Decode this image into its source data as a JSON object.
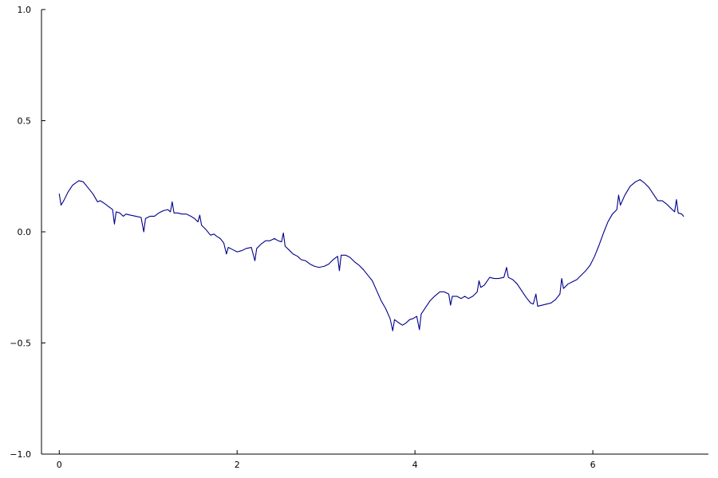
{
  "chart_data": {
    "type": "line",
    "title": "",
    "xlabel": "",
    "ylabel": "",
    "xlim": [
      -0.2,
      7.3
    ],
    "ylim": [
      -1.0,
      1.0
    ],
    "xticks": [
      {
        "value": 0,
        "label": "0"
      },
      {
        "value": 2,
        "label": "2"
      },
      {
        "value": 4,
        "label": "4"
      },
      {
        "value": 6,
        "label": "6"
      }
    ],
    "yticks": [
      {
        "value": -1.0,
        "label": "−1.0"
      },
      {
        "value": -0.5,
        "label": "−0.5"
      },
      {
        "value": 0.0,
        "label": "0.0"
      },
      {
        "value": 0.5,
        "label": "0.5"
      },
      {
        "value": 1.0,
        "label": "1.0"
      }
    ],
    "grid": false,
    "legend": "none",
    "series": [
      {
        "color": "#00008b",
        "points": [
          [
            0.0,
            0.17
          ],
          [
            0.02,
            0.12
          ],
          [
            0.05,
            0.14
          ],
          [
            0.1,
            0.18
          ],
          [
            0.15,
            0.21
          ],
          [
            0.22,
            0.23
          ],
          [
            0.27,
            0.225
          ],
          [
            0.32,
            0.2
          ],
          [
            0.38,
            0.17
          ],
          [
            0.43,
            0.135
          ],
          [
            0.46,
            0.14
          ],
          [
            0.5,
            0.13
          ],
          [
            0.55,
            0.115
          ],
          [
            0.6,
            0.1
          ],
          [
            0.62,
            0.035
          ],
          [
            0.64,
            0.09
          ],
          [
            0.68,
            0.085
          ],
          [
            0.72,
            0.07
          ],
          [
            0.75,
            0.08
          ],
          [
            0.8,
            0.075
          ],
          [
            0.86,
            0.07
          ],
          [
            0.92,
            0.065
          ],
          [
            0.95,
            0.0
          ],
          [
            0.97,
            0.06
          ],
          [
            1.02,
            0.07
          ],
          [
            1.07,
            0.07
          ],
          [
            1.12,
            0.085
          ],
          [
            1.17,
            0.095
          ],
          [
            1.22,
            0.1
          ],
          [
            1.25,
            0.09
          ],
          [
            1.27,
            0.135
          ],
          [
            1.29,
            0.085
          ],
          [
            1.33,
            0.085
          ],
          [
            1.38,
            0.08
          ],
          [
            1.43,
            0.08
          ],
          [
            1.48,
            0.07
          ],
          [
            1.52,
            0.06
          ],
          [
            1.56,
            0.045
          ],
          [
            1.58,
            0.075
          ],
          [
            1.6,
            0.03
          ],
          [
            1.65,
            0.01
          ],
          [
            1.7,
            -0.015
          ],
          [
            1.74,
            -0.01
          ],
          [
            1.77,
            -0.02
          ],
          [
            1.81,
            -0.03
          ],
          [
            1.85,
            -0.05
          ],
          [
            1.88,
            -0.1
          ],
          [
            1.9,
            -0.07
          ],
          [
            1.95,
            -0.08
          ],
          [
            2.0,
            -0.09
          ],
          [
            2.05,
            -0.085
          ],
          [
            2.1,
            -0.075
          ],
          [
            2.16,
            -0.07
          ],
          [
            2.2,
            -0.13
          ],
          [
            2.22,
            -0.075
          ],
          [
            2.27,
            -0.055
          ],
          [
            2.32,
            -0.04
          ],
          [
            2.37,
            -0.04
          ],
          [
            2.42,
            -0.03
          ],
          [
            2.46,
            -0.04
          ],
          [
            2.5,
            -0.045
          ],
          [
            2.52,
            -0.005
          ],
          [
            2.54,
            -0.065
          ],
          [
            2.58,
            -0.08
          ],
          [
            2.63,
            -0.1
          ],
          [
            2.68,
            -0.11
          ],
          [
            2.72,
            -0.125
          ],
          [
            2.77,
            -0.13
          ],
          [
            2.82,
            -0.145
          ],
          [
            2.87,
            -0.155
          ],
          [
            2.92,
            -0.16
          ],
          [
            2.98,
            -0.155
          ],
          [
            3.03,
            -0.145
          ],
          [
            3.08,
            -0.125
          ],
          [
            3.13,
            -0.11
          ],
          [
            3.15,
            -0.175
          ],
          [
            3.17,
            -0.105
          ],
          [
            3.22,
            -0.105
          ],
          [
            3.27,
            -0.115
          ],
          [
            3.32,
            -0.135
          ],
          [
            3.37,
            -0.15
          ],
          [
            3.42,
            -0.17
          ],
          [
            3.47,
            -0.195
          ],
          [
            3.52,
            -0.22
          ],
          [
            3.57,
            -0.265
          ],
          [
            3.62,
            -0.31
          ],
          [
            3.67,
            -0.345
          ],
          [
            3.72,
            -0.39
          ],
          [
            3.75,
            -0.445
          ],
          [
            3.77,
            -0.395
          ],
          [
            3.82,
            -0.41
          ],
          [
            3.86,
            -0.42
          ],
          [
            3.9,
            -0.41
          ],
          [
            3.94,
            -0.395
          ],
          [
            3.98,
            -0.39
          ],
          [
            4.02,
            -0.38
          ],
          [
            4.05,
            -0.44
          ],
          [
            4.07,
            -0.37
          ],
          [
            4.12,
            -0.34
          ],
          [
            4.17,
            -0.31
          ],
          [
            4.22,
            -0.29
          ],
          [
            4.28,
            -0.27
          ],
          [
            4.33,
            -0.27
          ],
          [
            4.38,
            -0.28
          ],
          [
            4.4,
            -0.33
          ],
          [
            4.42,
            -0.29
          ],
          [
            4.47,
            -0.29
          ],
          [
            4.52,
            -0.3
          ],
          [
            4.56,
            -0.29
          ],
          [
            4.6,
            -0.3
          ],
          [
            4.65,
            -0.29
          ],
          [
            4.7,
            -0.27
          ],
          [
            4.72,
            -0.22
          ],
          [
            4.74,
            -0.25
          ],
          [
            4.78,
            -0.24
          ],
          [
            4.84,
            -0.205
          ],
          [
            4.89,
            -0.21
          ],
          [
            4.94,
            -0.21
          ],
          [
            5.0,
            -0.205
          ],
          [
            5.03,
            -0.16
          ],
          [
            5.05,
            -0.205
          ],
          [
            5.1,
            -0.215
          ],
          [
            5.15,
            -0.235
          ],
          [
            5.2,
            -0.265
          ],
          [
            5.25,
            -0.295
          ],
          [
            5.3,
            -0.32
          ],
          [
            5.33,
            -0.325
          ],
          [
            5.36,
            -0.28
          ],
          [
            5.38,
            -0.335
          ],
          [
            5.43,
            -0.33
          ],
          [
            5.48,
            -0.325
          ],
          [
            5.53,
            -0.32
          ],
          [
            5.58,
            -0.305
          ],
          [
            5.63,
            -0.28
          ],
          [
            5.65,
            -0.21
          ],
          [
            5.67,
            -0.255
          ],
          [
            5.72,
            -0.235
          ],
          [
            5.77,
            -0.225
          ],
          [
            5.82,
            -0.215
          ],
          [
            5.87,
            -0.195
          ],
          [
            5.92,
            -0.175
          ],
          [
            5.97,
            -0.15
          ],
          [
            6.02,
            -0.11
          ],
          [
            6.07,
            -0.06
          ],
          [
            6.12,
            -0.005
          ],
          [
            6.17,
            0.045
          ],
          [
            6.22,
            0.08
          ],
          [
            6.27,
            0.1
          ],
          [
            6.29,
            0.165
          ],
          [
            6.31,
            0.12
          ],
          [
            6.36,
            0.165
          ],
          [
            6.42,
            0.205
          ],
          [
            6.48,
            0.225
          ],
          [
            6.53,
            0.235
          ],
          [
            6.58,
            0.22
          ],
          [
            6.63,
            0.2
          ],
          [
            6.68,
            0.17
          ],
          [
            6.73,
            0.14
          ],
          [
            6.78,
            0.14
          ],
          [
            6.83,
            0.125
          ],
          [
            6.88,
            0.105
          ],
          [
            6.92,
            0.09
          ],
          [
            6.94,
            0.145
          ],
          [
            6.96,
            0.085
          ],
          [
            7.0,
            0.08
          ],
          [
            7.02,
            0.07
          ]
        ]
      }
    ]
  }
}
